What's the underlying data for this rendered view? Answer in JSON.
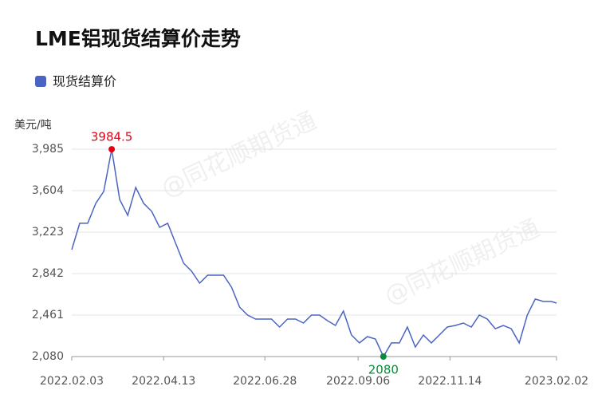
{
  "chart_data": {
    "type": "line",
    "title": "LME铝现货结算价走势",
    "y_label": "美元/吨",
    "watermark": "@同花顺期货通",
    "grid": true,
    "x": [
      "2022.02.03",
      "2022.02.09",
      "2022.02.15",
      "2022.02.21",
      "2022.02.27",
      "2022.03.05",
      "2022.03.11",
      "2022.03.17",
      "2022.03.23",
      "2022.03.29",
      "2022.04.04",
      "2022.04.10",
      "2022.04.16",
      "2022.04.22",
      "2022.04.28",
      "2022.05.04",
      "2022.05.10",
      "2022.05.16",
      "2022.05.22",
      "2022.05.28",
      "2022.06.03",
      "2022.06.09",
      "2022.06.15",
      "2022.06.21",
      "2022.06.27",
      "2022.07.03",
      "2022.07.09",
      "2022.07.15",
      "2022.07.21",
      "2022.07.27",
      "2022.08.02",
      "2022.08.08",
      "2022.08.14",
      "2022.08.20",
      "2022.08.26",
      "2022.09.01",
      "2022.09.07",
      "2022.09.13",
      "2022.09.19",
      "2022.09.25",
      "2022.10.01",
      "2022.10.07",
      "2022.10.13",
      "2022.10.19",
      "2022.10.25",
      "2022.10.31",
      "2022.11.06",
      "2022.11.12",
      "2022.11.18",
      "2022.11.24",
      "2022.11.30",
      "2022.12.06",
      "2022.12.12",
      "2022.12.18",
      "2022.12.24",
      "2022.12.30",
      "2023.01.05",
      "2023.01.11",
      "2023.01.17",
      "2023.01.23",
      "2023.01.29",
      "2023.02.02"
    ],
    "series": [
      {
        "name": "现货结算价",
        "color": "#4a64c4",
        "values": [
          3062,
          3304,
          3304,
          3487,
          3597,
          3984.5,
          3523,
          3377,
          3633,
          3487,
          3414,
          3267,
          3304,
          3120,
          2937,
          2864,
          2754,
          2827,
          2827,
          2827,
          2717,
          2534,
          2461,
          2424,
          2424,
          2424,
          2351,
          2424,
          2424,
          2388,
          2461,
          2461,
          2410,
          2366,
          2498,
          2278,
          2205,
          2263,
          2241,
          2080,
          2205,
          2205,
          2351,
          2168,
          2278,
          2205,
          2278,
          2351,
          2366,
          2388,
          2351,
          2461,
          2424,
          2336,
          2366,
          2336,
          2205,
          2461,
          2608,
          2586,
          2586,
          2571
        ]
      }
    ],
    "highlights": [
      {
        "x": "2022.03.05",
        "value": 3984.5,
        "color": "#e60012"
      },
      {
        "x": "2022.09.25",
        "value": 2080,
        "color": "#0a8a3a"
      }
    ],
    "xlim": [
      "2022.02.03",
      "2023.02.02"
    ],
    "xticks": [
      "2022.02.03",
      "2022.04.13",
      "2022.06.28",
      "2022.09.06",
      "2022.11.14",
      "2023.02.02"
    ],
    "ylim": [
      2080,
      3985
    ],
    "yticks": [
      {
        "value": 2080,
        "label": "2,080"
      },
      {
        "value": 2461,
        "label": "2,461"
      },
      {
        "value": 2842,
        "label": "2,842"
      },
      {
        "value": 3223,
        "label": "3,223"
      },
      {
        "value": 3604,
        "label": "3,604"
      },
      {
        "value": 3985,
        "label": "3,985"
      }
    ]
  }
}
